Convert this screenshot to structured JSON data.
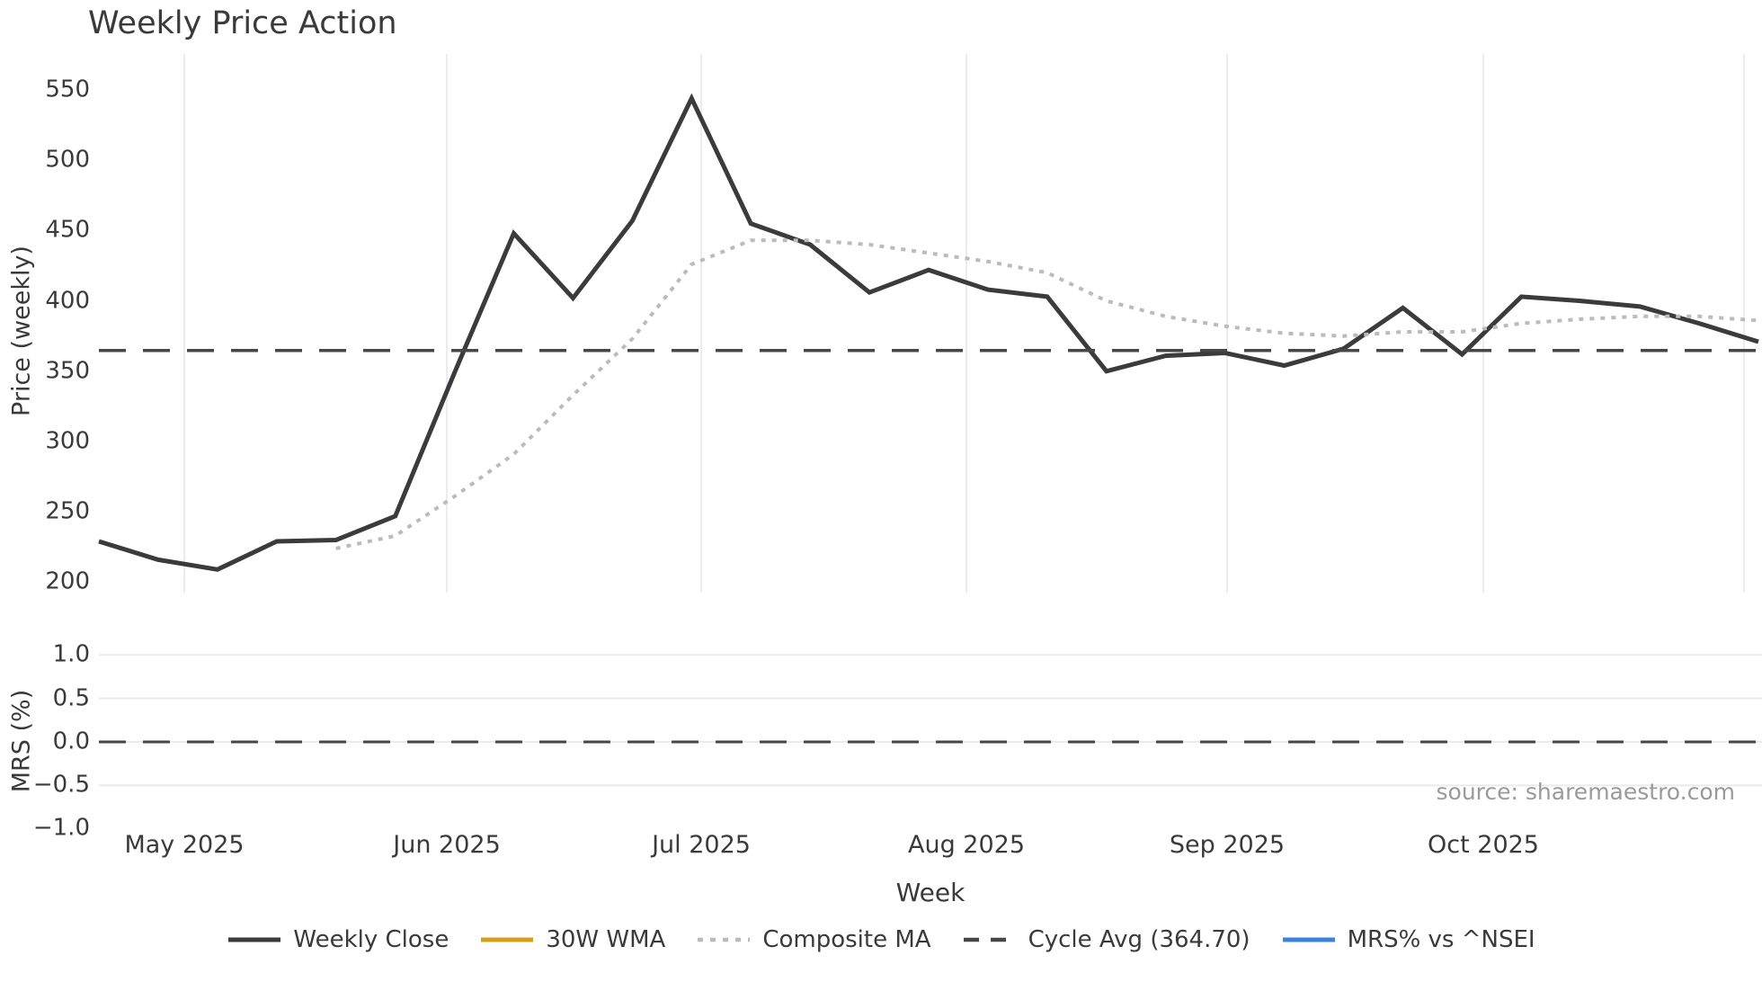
{
  "ui": {
    "title": "Weekly Price Action",
    "price_ylabel": "Price (weekly)",
    "price_yticks": [
      "550",
      "500",
      "450",
      "400",
      "350",
      "300",
      "250",
      "200"
    ],
    "mrs_ylabel": "MRS (%)",
    "mrs_yticks": [
      "1.0",
      "0.5",
      "0.0",
      "−0.5",
      "−1.0"
    ],
    "xticks": [
      "May 2025",
      "Jun 2025",
      "Jul 2025",
      "Aug 2025",
      "Sep 2025",
      "Oct 2025"
    ],
    "xlabel": "Week",
    "source": "source: sharemaestro.com",
    "legend": [
      {
        "label": "Weekly Close",
        "color": "#3b3b3b",
        "style": "solid"
      },
      {
        "label": "30W WMA",
        "color": "#d4a017",
        "style": "solid"
      },
      {
        "label": "Composite MA",
        "color": "#bbbbbb",
        "style": "dotted"
      },
      {
        "label": "Cycle Avg (364.70)",
        "color": "#474747",
        "style": "dashed"
      },
      {
        "label": "MRS% vs ^NSEI",
        "color": "#3b82d8",
        "style": "solid"
      }
    ]
  },
  "chart_data": {
    "type": "line",
    "title": "Weekly Price Action",
    "xlabel": "Week",
    "x_weekly": [
      "2025-04-21",
      "2025-04-28",
      "2025-05-05",
      "2025-05-12",
      "2025-05-19",
      "2025-05-26",
      "2025-06-02",
      "2025-06-09",
      "2025-06-16",
      "2025-06-23",
      "2025-06-30",
      "2025-07-07",
      "2025-07-14",
      "2025-07-21",
      "2025-07-28",
      "2025-08-04",
      "2025-08-11",
      "2025-08-18",
      "2025-08-25",
      "2025-09-01",
      "2025-09-08",
      "2025-09-15",
      "2025-09-22",
      "2025-09-29",
      "2025-10-06",
      "2025-10-13",
      "2025-10-20",
      "2025-10-27",
      "2025-11-03"
    ],
    "x_ticklabels": [
      "May 2025",
      "Jun 2025",
      "Jul 2025",
      "Aug 2025",
      "Sep 2025",
      "Oct 2025"
    ],
    "source": "source: sharemaestro.com",
    "legend_position": "bottom-center",
    "panels": [
      {
        "name": "price",
        "ylabel": "Price (weekly)",
        "ylim": [
          192,
          576
        ],
        "yticks": [
          550,
          500,
          450,
          400,
          350,
          300,
          250,
          200
        ],
        "grid": "vertical-month-gridlines",
        "series": [
          {
            "name": "Weekly Close",
            "style": "solid",
            "color": "#3b3b3b",
            "width": 5,
            "visible": true,
            "values": [
              229,
              216,
              209,
              229,
              230,
              247,
              349,
              448,
              402,
              457,
              544,
              455,
              440,
              406,
              422,
              408,
              403,
              350,
              361,
              363,
              354,
              366,
              395,
              362,
              403,
              400,
              396,
              384,
              371
            ]
          },
          {
            "name": "30W WMA",
            "style": "solid",
            "color": "#d4a017",
            "width": 5,
            "visible": false,
            "values": []
          },
          {
            "name": "Composite MA",
            "style": "dotted",
            "color": "#bbbbbb",
            "width": 4,
            "visible": true,
            "values": [
              null,
              null,
              null,
              null,
              224,
              233,
              261,
              291,
              333,
              373,
              426,
              443,
              443,
              440,
              434,
              428,
              420,
              400,
              389,
              382,
              377,
              375,
              378,
              378,
              384,
              387,
              389,
              389,
              386
            ]
          },
          {
            "name": "Cycle Avg (364.70)",
            "style": "dashed",
            "color": "#474747",
            "width": 3.5,
            "visible": true,
            "hline": 364.7
          }
        ]
      },
      {
        "name": "mrs",
        "ylabel": "MRS (%)",
        "ylim": [
          -1.1,
          1.1
        ],
        "yticks": [
          1.0,
          0.5,
          0.0,
          -0.5,
          -1.0
        ],
        "grid": "horizontal-gridlines",
        "series": [
          {
            "name": "MRS% vs ^NSEI",
            "style": "solid",
            "color": "#3b82d8",
            "width": 4,
            "visible": false,
            "values": []
          },
          {
            "name": "Zero Line",
            "style": "dashed",
            "color": "#474747",
            "width": 3,
            "visible": true,
            "hline": 0.0
          }
        ]
      }
    ]
  }
}
